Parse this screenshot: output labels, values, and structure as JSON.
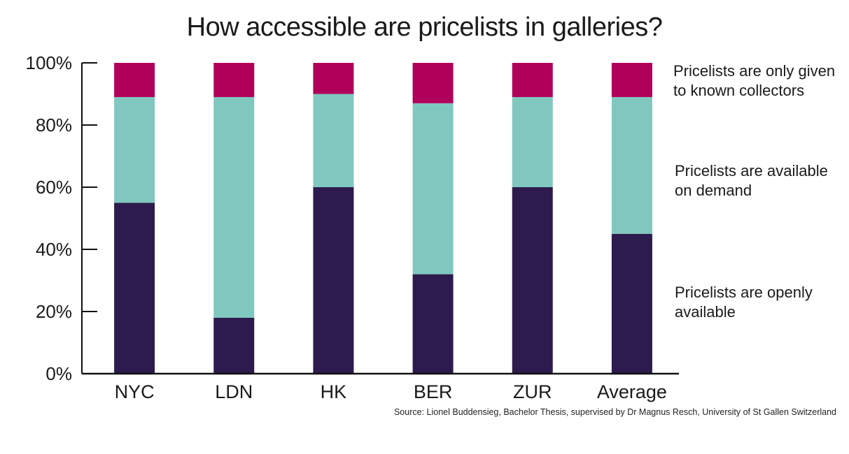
{
  "chart_data": {
    "type": "bar",
    "stacked": true,
    "title": "How accessible are pricelists in galleries?",
    "categories": [
      "NYC",
      "LDN",
      "HK",
      "BER",
      "ZUR",
      "Average"
    ],
    "series": [
      {
        "name": "Pricelists are openly available",
        "color": "#2d1b4e",
        "values": [
          55,
          18,
          60,
          32,
          60,
          45
        ]
      },
      {
        "name": "Pricelists are available on demand",
        "color": "#80c8bf",
        "values": [
          34,
          71,
          30,
          55,
          29,
          44
        ]
      },
      {
        "name": "Pricelists are only given to known collectors",
        "color": "#b0005a",
        "values": [
          11,
          11,
          10,
          13,
          11,
          11
        ]
      }
    ],
    "yticks": [
      "0%",
      "20%",
      "40%",
      "60%",
      "80%",
      "100%"
    ],
    "ylim": [
      0,
      100
    ],
    "xlabel": "",
    "ylabel": "",
    "legend": {
      "collectors": [
        "Pricelists are only given",
        "to known collectors"
      ],
      "demand": [
        "Pricelists are available",
        "on demand"
      ],
      "open": [
        "Pricelists are openly",
        "available"
      ]
    },
    "source": "Source: Lionel Buddensieg, Bachelor Thesis, supervised by Dr Magnus Resch, University of St Gallen Switzerland"
  }
}
